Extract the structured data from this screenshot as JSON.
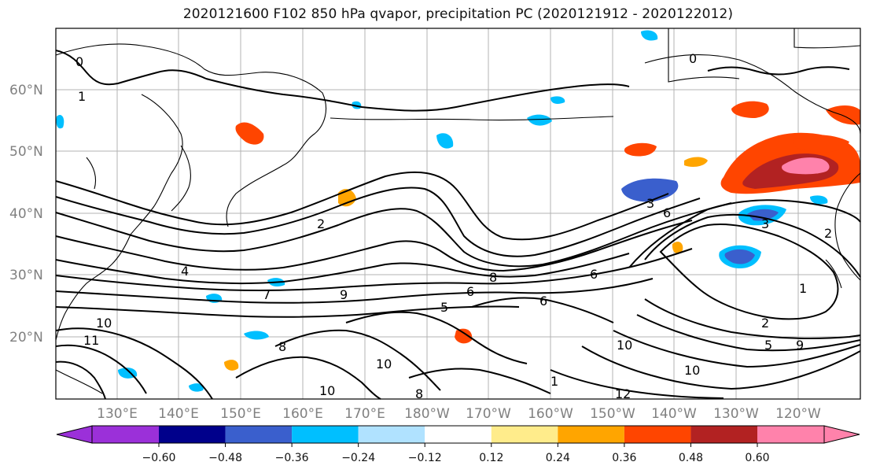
{
  "title": "2020121600 F102 850 hPa qvapor, precipitation PC (2020121912 - 2020122012)",
  "map": {
    "lat_labels": [
      "60°N",
      "50°N",
      "40°N",
      "30°N",
      "20°N"
    ],
    "lon_labels": [
      "130°E",
      "140°E",
      "150°E",
      "160°E",
      "170°E",
      "180°W",
      "170°W",
      "160°W",
      "150°W",
      "140°W",
      "130°W",
      "120°W"
    ],
    "contour_labels": [
      "0",
      "0",
      "1",
      "1",
      "2",
      "2",
      "2",
      "3",
      "3",
      "4",
      "5",
      "5",
      "6",
      "6",
      "6",
      "6",
      "7",
      "8",
      "8",
      "8",
      "9",
      "9",
      "10",
      "10",
      "10",
      "10",
      "10",
      "11",
      "12",
      "1"
    ]
  },
  "colorbar": {
    "ticks": [
      "−0.60",
      "−0.48",
      "−0.36",
      "−0.24",
      "−0.12",
      "0.12",
      "0.24",
      "0.36",
      "0.48",
      "0.60"
    ],
    "colors": [
      "#9b30d9",
      "#00008b",
      "#3a5fcd",
      "#00bfff",
      "#b0e2ff",
      "#ffffff",
      "#ffec8b",
      "#ffa500",
      "#ff4500",
      "#b22222",
      "#ff82ab"
    ]
  }
}
